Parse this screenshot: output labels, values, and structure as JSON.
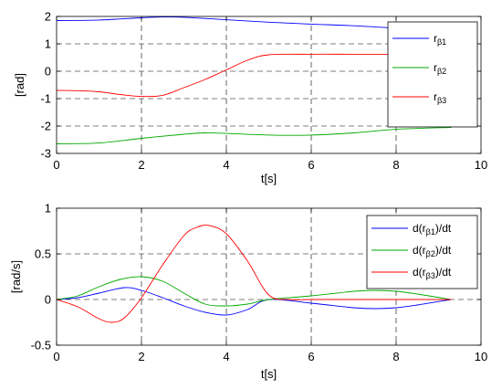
{
  "chart_data": [
    {
      "type": "line",
      "xlabel": "t[s]",
      "ylabel": "[rad]",
      "xlim": [
        0,
        10
      ],
      "ylim": [
        -3,
        2
      ],
      "xticks": [
        "0",
        "2",
        "4",
        "6",
        "8",
        "10"
      ],
      "yticks": [
        "-3",
        "-2",
        "-1",
        "0",
        "1",
        "2"
      ],
      "grid": true,
      "legend_position": "top-right",
      "series": [
        {
          "name": "r_β1",
          "legend_base": "r",
          "legend_sub": "β1",
          "color": "#0000ff",
          "x": [
            0,
            1,
            2,
            2.5,
            3,
            4,
            5,
            6,
            7,
            8,
            9.3
          ],
          "y": [
            1.85,
            1.87,
            1.95,
            1.98,
            1.97,
            1.88,
            1.79,
            1.72,
            1.66,
            1.57,
            1.45
          ]
        },
        {
          "name": "r_β2",
          "legend_base": "r",
          "legend_sub": "β2",
          "color": "#00aa00",
          "x": [
            0,
            1,
            2,
            3,
            3.5,
            4,
            5,
            6,
            7,
            8,
            9.3
          ],
          "y": [
            -2.65,
            -2.62,
            -2.45,
            -2.3,
            -2.25,
            -2.27,
            -2.33,
            -2.33,
            -2.25,
            -2.12,
            -2.05
          ]
        },
        {
          "name": "r_β3",
          "legend_base": "r",
          "legend_sub": "β3",
          "color": "#ff0000",
          "x": [
            0,
            0.5,
            1,
            1.5,
            2,
            2.5,
            3,
            3.5,
            4,
            4.5,
            5,
            6,
            7,
            8,
            9.3
          ],
          "y": [
            -0.7,
            -0.71,
            -0.75,
            -0.85,
            -0.92,
            -0.88,
            -0.6,
            -0.3,
            0.05,
            0.4,
            0.6,
            0.62,
            0.62,
            0.62,
            0.62
          ]
        }
      ]
    },
    {
      "type": "line",
      "xlabel": "t[s]",
      "ylabel": "[rad/s]",
      "xlim": [
        0,
        10
      ],
      "ylim": [
        -0.5,
        1
      ],
      "xticks": [
        "0",
        "2",
        "4",
        "6",
        "8",
        "10"
      ],
      "yticks": [
        "-0.5",
        "0",
        "0.5",
        "1"
      ],
      "grid": true,
      "legend_position": "top-right",
      "series": [
        {
          "name": "d(r_β1)/dt",
          "legend_base": "d(r",
          "legend_sub": "β1",
          "legend_tail": ")/dt",
          "color": "#0000ff",
          "x": [
            0,
            0.5,
            1,
            1.6,
            2,
            2.5,
            3,
            3.5,
            4,
            4.5,
            5,
            6,
            7,
            7.5,
            8,
            8.5,
            9.3
          ],
          "y": [
            0,
            0.02,
            0.07,
            0.13,
            0.1,
            0.02,
            -0.07,
            -0.14,
            -0.17,
            -0.11,
            0,
            -0.04,
            -0.09,
            -0.1,
            -0.09,
            -0.06,
            0
          ]
        },
        {
          "name": "d(r_β2)/dt",
          "legend_base": "d(r",
          "legend_sub": "β2",
          "legend_tail": ")/dt",
          "color": "#00aa00",
          "x": [
            0,
            0.5,
            1,
            1.5,
            2,
            2.5,
            3,
            3.5,
            4,
            4.5,
            5,
            6,
            7,
            7.5,
            8,
            8.5,
            9.3
          ],
          "y": [
            0,
            0.04,
            0.14,
            0.22,
            0.25,
            0.2,
            0.07,
            -0.05,
            -0.07,
            -0.05,
            0,
            0.04,
            0.09,
            0.1,
            0.09,
            0.06,
            0
          ]
        },
        {
          "name": "d(r_β3)/dt",
          "legend_base": "d(r",
          "legend_sub": "β3",
          "legend_tail": ")/dt",
          "color": "#ff0000",
          "x": [
            0,
            0.5,
            1,
            1.3,
            1.6,
            2,
            2.5,
            3,
            3.3,
            3.6,
            4,
            4.5,
            5,
            5.5,
            6,
            7,
            8,
            9.3
          ],
          "y": [
            0,
            -0.08,
            -0.21,
            -0.25,
            -0.2,
            0.02,
            0.38,
            0.7,
            0.79,
            0.81,
            0.72,
            0.42,
            0.05,
            0,
            0,
            0,
            0,
            0
          ]
        }
      ]
    }
  ]
}
